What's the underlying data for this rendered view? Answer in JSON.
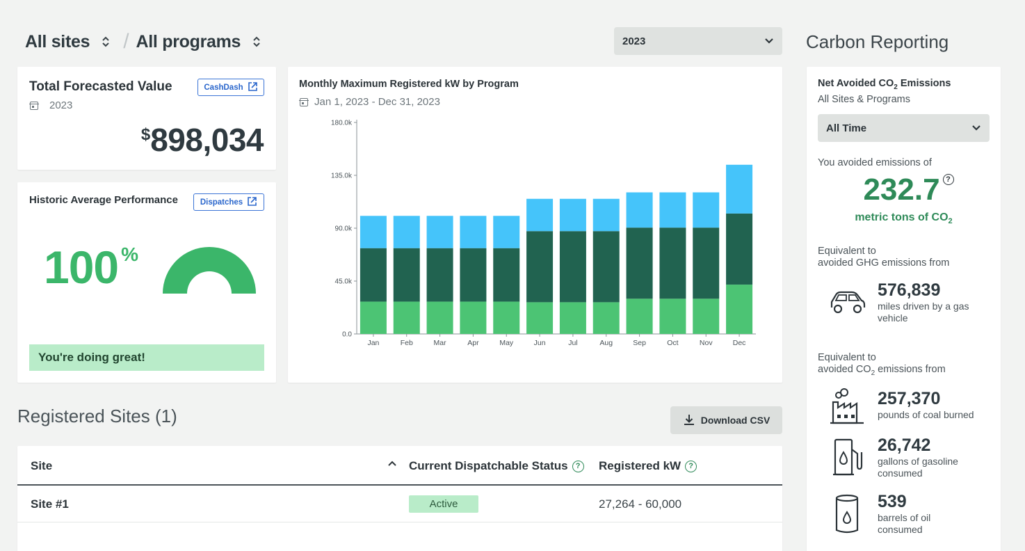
{
  "header": {
    "site_selector": "All sites",
    "separator": "/",
    "program_selector": "All programs",
    "year_dropdown": "2023"
  },
  "forecast_card": {
    "title": "Total Forecasted Value",
    "button_label": "CashDash",
    "year": "2023",
    "currency": "$",
    "value": "898,034"
  },
  "performance_card": {
    "title": "Historic Average Performance",
    "button_label": "Dispatches",
    "value": "100",
    "unit": "%",
    "gauge_fraction": 1.0,
    "message": "You're doing great!"
  },
  "chart_card": {
    "title": "Monthly Maximum Registered kW by Program",
    "date_range": "Jan 1, 2023 - Dec 31, 2023"
  },
  "chart_data": {
    "type": "bar",
    "stacked": true,
    "categories": [
      "Jan",
      "Feb",
      "Mar",
      "Apr",
      "May",
      "Jun",
      "Jul",
      "Aug",
      "Sep",
      "Oct",
      "Nov",
      "Dec"
    ],
    "series": [
      {
        "color": "#4cc474",
        "values": [
          27500,
          27500,
          27500,
          27500,
          27500,
          27000,
          27000,
          27000,
          30000,
          30000,
          30000,
          42000
        ]
      },
      {
        "color": "#216350",
        "values": [
          45500,
          45500,
          45500,
          45500,
          45500,
          60500,
          60500,
          60500,
          60500,
          60500,
          60500,
          60500
        ]
      },
      {
        "color": "#45c4fa",
        "values": [
          27500,
          27500,
          27500,
          27500,
          27500,
          27500,
          27500,
          27500,
          30000,
          30000,
          30000,
          41500
        ]
      }
    ],
    "ylim": [
      0,
      180000
    ],
    "yticks": [
      "0.0",
      "45.0k",
      "90.0k",
      "135.0k",
      "180.0k"
    ],
    "ytick_values": [
      0,
      45000,
      90000,
      135000,
      180000
    ],
    "xlabel": "",
    "ylabel": "",
    "grid": false,
    "legend": "none"
  },
  "sites": {
    "heading": "Registered Sites (1)",
    "download_label": "Download CSV",
    "columns": [
      "Site",
      "Current Dispatchable Status",
      "Registered kW"
    ],
    "rows": [
      {
        "site": "Site #1",
        "status": "Active",
        "registered_kw": "27,264 - 60,000"
      }
    ]
  },
  "carbon": {
    "heading": "Carbon Reporting",
    "card_title": "Net Avoided CO",
    "card_title_sub": "2",
    "card_title_end": " Emissions",
    "card_subtitle": "All Sites & Programs",
    "period_dropdown": "All Time",
    "avoided_label": "You avoided emissions of",
    "avoided_value": "232.7",
    "avoided_unit": "metric tons of CO",
    "avoided_unit_sub": "2",
    "ghg_heading_1": "Equivalent to",
    "ghg_heading_2": "avoided GHG emissions from",
    "miles_value": "576,839",
    "miles_desc_1": "miles driven by a gas",
    "miles_desc_2": "vehicle",
    "co2_heading_1": "Equivalent to",
    "co2_heading_2a": "avoided CO",
    "co2_heading_2sub": "2",
    "co2_heading_2b": " emissions from",
    "coal_value": "257,370",
    "coal_desc": "pounds of coal burned",
    "gas_value": "26,742",
    "gas_desc_1": "gallons of gasoline",
    "gas_desc_2": "consumed",
    "oil_value": "539",
    "oil_desc_1": "barrels of oil",
    "oil_desc_2": "consumed"
  },
  "colors": {
    "accent_green": "#2e8a58",
    "status_active_bg": "#b9ecc9",
    "link_blue": "#2a66cc"
  }
}
